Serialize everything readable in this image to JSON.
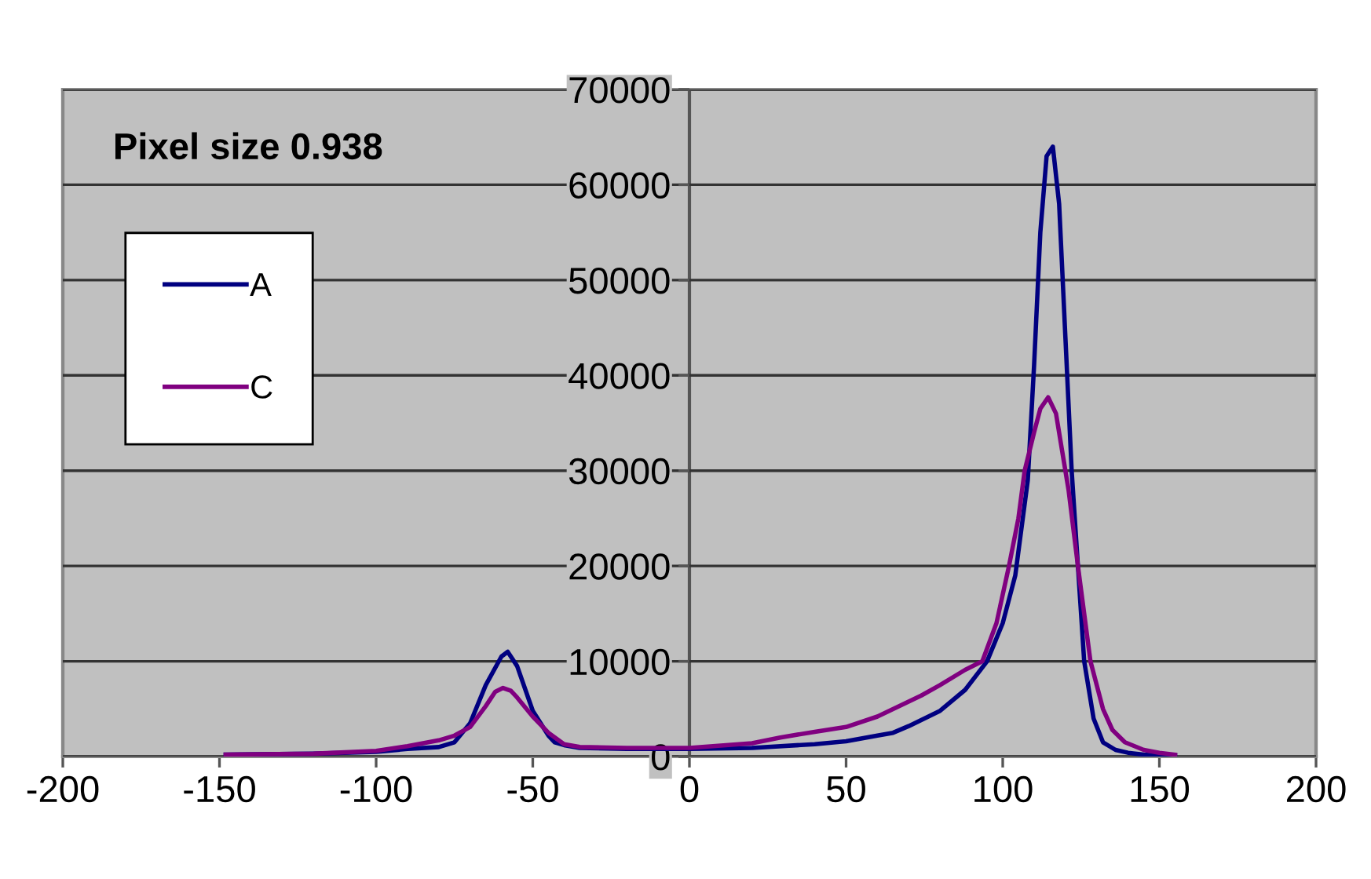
{
  "chart_data": {
    "type": "line",
    "annotations": [
      "Pixel size 0.938"
    ],
    "xlim": [
      -200,
      200
    ],
    "xticks": [
      -200,
      -150,
      -100,
      -50,
      0,
      50,
      100,
      150,
      200
    ],
    "ylim": [
      0,
      70000
    ],
    "yticks": [
      0,
      10000,
      20000,
      30000,
      40000,
      50000,
      60000,
      70000
    ],
    "grid": "y",
    "legend": "top left",
    "marker": "none",
    "line_style": "solid",
    "series": [
      {
        "name": "A",
        "color": "#000080",
        "x": [
          -148,
          -120,
          -100,
          -90,
          -80,
          -75,
          -70,
          -65,
          -60,
          -58,
          -55,
          -50,
          -45,
          -43,
          -40,
          -35,
          -20,
          0,
          20,
          40,
          50,
          60,
          65,
          70,
          80,
          88,
          95,
          100,
          104,
          108,
          110,
          112,
          114,
          116,
          118,
          120,
          122,
          124,
          126,
          129,
          132,
          136,
          140,
          145,
          150,
          155
        ],
        "values": [
          200,
          300,
          500,
          800,
          1000,
          1500,
          3500,
          7500,
          10500,
          11000,
          9500,
          4800,
          2200,
          1500,
          1200,
          900,
          800,
          800,
          900,
          1300,
          1600,
          2200,
          2500,
          3200,
          4800,
          7000,
          10000,
          14000,
          19000,
          29000,
          41000,
          55000,
          63000,
          64000,
          58000,
          44000,
          30000,
          20000,
          10000,
          4000,
          1500,
          700,
          400,
          200,
          100,
          100
        ]
      },
      {
        "name": "C",
        "color": "#800080",
        "x": [
          -148,
          -120,
          -100,
          -90,
          -80,
          -75,
          -70,
          -65,
          -62,
          -59.5,
          -57,
          -55,
          -50,
          -45,
          -40,
          -35,
          -20,
          0,
          20,
          29,
          40,
          50,
          60,
          74,
          80,
          88,
          93.5,
          98,
          102,
          105,
          107,
          110,
          112,
          114.5,
          117,
          119,
          121,
          124,
          128,
          132,
          135,
          139,
          145,
          150,
          155
        ],
        "values": [
          200,
          300,
          600,
          1100,
          1700,
          2200,
          3100,
          5300,
          6800,
          7200,
          6900,
          6200,
          4200,
          2500,
          1300,
          1000,
          900,
          900,
          1400,
          2000,
          2600,
          3100,
          4200,
          6400,
          7500,
          9100,
          10000,
          14000,
          20000,
          25000,
          30000,
          34000,
          36500,
          37700,
          36000,
          32000,
          28000,
          20000,
          10000,
          5000,
          2800,
          1500,
          700,
          400,
          200
        ]
      }
    ]
  }
}
